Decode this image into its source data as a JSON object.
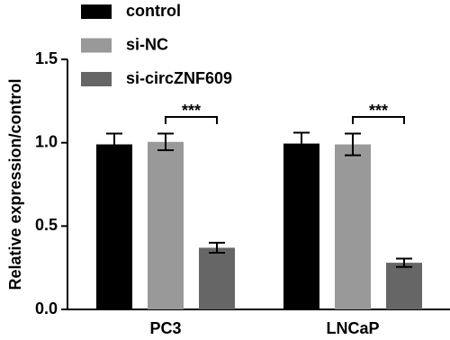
{
  "chart_data": {
    "type": "bar",
    "y_label": "Relative expression/control",
    "categories": [
      "PC3",
      "LNCaP"
    ],
    "series": [
      {
        "name": "control",
        "color": "#000000",
        "values": [
          0.99,
          0.995
        ],
        "errors": [
          0.065,
          0.065
        ]
      },
      {
        "name": "si-NC",
        "color": "#999999",
        "values": [
          1.005,
          0.99
        ],
        "errors": [
          0.05,
          0.065
        ]
      },
      {
        "name": "si-circZNF609",
        "color": "#666666",
        "values": [
          0.37,
          0.28
        ],
        "errors": [
          0.03,
          0.025
        ]
      }
    ],
    "annotations": [
      "***",
      "***"
    ],
    "ylim": [
      0,
      1.5
    ],
    "yticks": [
      {
        "value": 0,
        "label": "0.0"
      },
      {
        "value": 0.5,
        "label": "0.5"
      },
      {
        "value": 1,
        "label": "1.0"
      },
      {
        "value": 1.5,
        "label": "1.5"
      }
    ],
    "legend": "top-left"
  }
}
